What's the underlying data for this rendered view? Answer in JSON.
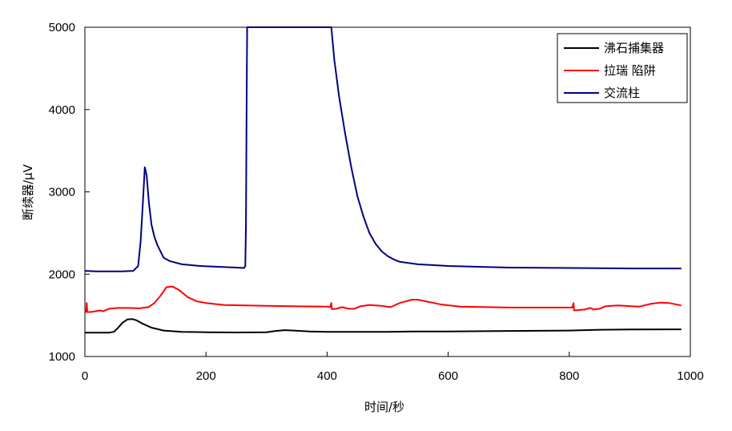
{
  "chart_data": {
    "type": "line",
    "xlabel": "时间/秒",
    "ylabel": "断续器/μV",
    "xlim": [
      0,
      1000
    ],
    "ylim": [
      1000,
      5000
    ],
    "x_ticks": [
      0,
      200,
      400,
      600,
      800,
      1000
    ],
    "x_tick_labels": [
      "0",
      "200",
      "400",
      "600",
      "800",
      "1000"
    ],
    "y_ticks": [
      1000,
      2000,
      3000,
      4000,
      5000
    ],
    "y_tick_labels": [
      "1000",
      "2000",
      "3000",
      "4000",
      "5000"
    ],
    "grid": false,
    "legend_position": "top-right",
    "series": [
      {
        "name": "沸石捕集器",
        "color": "#000000",
        "points": [
          [
            0,
            1290
          ],
          [
            40,
            1290
          ],
          [
            48,
            1300
          ],
          [
            55,
            1350
          ],
          [
            62,
            1410
          ],
          [
            70,
            1450
          ],
          [
            78,
            1455
          ],
          [
            85,
            1440
          ],
          [
            95,
            1400
          ],
          [
            110,
            1350
          ],
          [
            130,
            1315
          ],
          [
            160,
            1300
          ],
          [
            200,
            1295
          ],
          [
            250,
            1292
          ],
          [
            300,
            1295
          ],
          [
            315,
            1310
          ],
          [
            330,
            1320
          ],
          [
            345,
            1315
          ],
          [
            370,
            1305
          ],
          [
            400,
            1300
          ],
          [
            500,
            1300
          ],
          [
            550,
            1305
          ],
          [
            600,
            1305
          ],
          [
            700,
            1310
          ],
          [
            800,
            1315
          ],
          [
            850,
            1325
          ],
          [
            900,
            1328
          ],
          [
            985,
            1330
          ]
        ]
      },
      {
        "name": "拉瑞 陷阱",
        "color": "#ff0000",
        "points": [
          [
            0,
            1540
          ],
          [
            2,
            1540
          ],
          [
            3,
            1650
          ],
          [
            4,
            1540
          ],
          [
            10,
            1540
          ],
          [
            25,
            1560
          ],
          [
            30,
            1550
          ],
          [
            40,
            1580
          ],
          [
            55,
            1590
          ],
          [
            70,
            1590
          ],
          [
            90,
            1585
          ],
          [
            105,
            1600
          ],
          [
            115,
            1650
          ],
          [
            125,
            1740
          ],
          [
            135,
            1845
          ],
          [
            145,
            1850
          ],
          [
            155,
            1810
          ],
          [
            170,
            1720
          ],
          [
            185,
            1670
          ],
          [
            200,
            1650
          ],
          [
            230,
            1625
          ],
          [
            300,
            1615
          ],
          [
            400,
            1605
          ],
          [
            405,
            1600
          ],
          [
            407,
            1650
          ],
          [
            408,
            1575
          ],
          [
            415,
            1580
          ],
          [
            425,
            1600
          ],
          [
            435,
            1580
          ],
          [
            445,
            1580
          ],
          [
            455,
            1610
          ],
          [
            470,
            1625
          ],
          [
            490,
            1615
          ],
          [
            505,
            1600
          ],
          [
            520,
            1650
          ],
          [
            540,
            1690
          ],
          [
            550,
            1690
          ],
          [
            570,
            1660
          ],
          [
            590,
            1630
          ],
          [
            620,
            1605
          ],
          [
            700,
            1595
          ],
          [
            805,
            1595
          ],
          [
            807,
            1650
          ],
          [
            808,
            1560
          ],
          [
            825,
            1570
          ],
          [
            835,
            1590
          ],
          [
            840,
            1570
          ],
          [
            850,
            1580
          ],
          [
            860,
            1610
          ],
          [
            880,
            1620
          ],
          [
            915,
            1605
          ],
          [
            935,
            1640
          ],
          [
            950,
            1655
          ],
          [
            965,
            1650
          ],
          [
            985,
            1620
          ]
        ]
      },
      {
        "name": "交流柱",
        "color": "#000080",
        "points": [
          [
            0,
            2040
          ],
          [
            20,
            2035
          ],
          [
            60,
            2035
          ],
          [
            80,
            2040
          ],
          [
            88,
            2100
          ],
          [
            92,
            2400
          ],
          [
            96,
            2900
          ],
          [
            99,
            3300
          ],
          [
            102,
            3200
          ],
          [
            106,
            2850
          ],
          [
            110,
            2600
          ],
          [
            115,
            2450
          ],
          [
            120,
            2350
          ],
          [
            130,
            2200
          ],
          [
            140,
            2160
          ],
          [
            160,
            2120
          ],
          [
            190,
            2100
          ],
          [
            220,
            2090
          ],
          [
            250,
            2080
          ],
          [
            263,
            2075
          ],
          [
            265,
            2100
          ],
          [
            266,
            2600
          ],
          [
            267,
            4000
          ],
          [
            268,
            5000
          ],
          [
            407,
            5000
          ],
          [
            412,
            4600
          ],
          [
            420,
            4150
          ],
          [
            430,
            3700
          ],
          [
            440,
            3300
          ],
          [
            450,
            2950
          ],
          [
            460,
            2700
          ],
          [
            470,
            2500
          ],
          [
            480,
            2370
          ],
          [
            490,
            2280
          ],
          [
            500,
            2220
          ],
          [
            510,
            2180
          ],
          [
            520,
            2150
          ],
          [
            550,
            2120
          ],
          [
            600,
            2100
          ],
          [
            700,
            2080
          ],
          [
            800,
            2075
          ],
          [
            900,
            2070
          ],
          [
            985,
            2070
          ]
        ]
      }
    ]
  }
}
